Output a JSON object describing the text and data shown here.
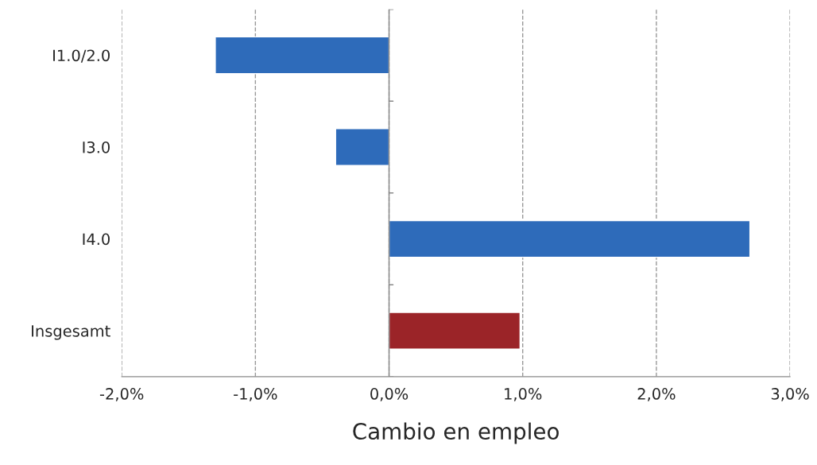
{
  "chart_data": {
    "type": "bar",
    "orientation": "horizontal",
    "xlabel": "Cambio en empleo",
    "categories": [
      "I1.0/2.0",
      "I3.0",
      "I4.0",
      "Insgesamt"
    ],
    "values": [
      -1.3,
      -0.4,
      2.7,
      0.98
    ],
    "colors": [
      "#2e6bba",
      "#2e6bba",
      "#2e6bba",
      "#9b2428"
    ],
    "xlim": [
      -2,
      3
    ],
    "xticks": [
      {
        "value": -2,
        "label": "-2,0%"
      },
      {
        "value": -1,
        "label": "-1,0%"
      },
      {
        "value": 0,
        "label": "0,0%"
      },
      {
        "value": 1,
        "label": "1,0%"
      },
      {
        "value": 2,
        "label": "2,0%"
      },
      {
        "value": 3,
        "label": "3,0%"
      }
    ],
    "grid": "x",
    "legend": false
  }
}
